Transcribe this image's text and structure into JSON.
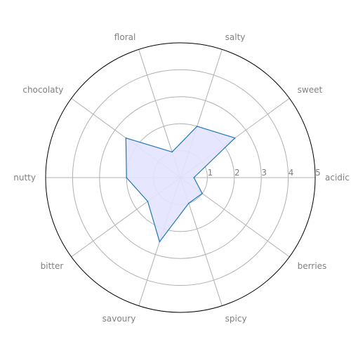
{
  "chart_data": {
    "type": "radar",
    "categories": [
      "acidic",
      "sweet",
      "salty",
      "floral",
      "chocolaty",
      "nutty",
      "bitter",
      "savoury",
      "spicy",
      "berries"
    ],
    "values": [
      0.5,
      2.5,
      2.0,
      1.0,
      2.5,
      2.0,
      1.5,
      2.5,
      1.0,
      1.0
    ],
    "r_ticks": [
      "1",
      "2",
      "3",
      "4",
      "5"
    ],
    "r_range": [
      0,
      5
    ],
    "grid": true,
    "colors": {
      "line": "#1f77b4",
      "fill": "#e4e3ff",
      "grid": "#b0b0b0",
      "outer": "#000000",
      "text": "#808080"
    }
  }
}
